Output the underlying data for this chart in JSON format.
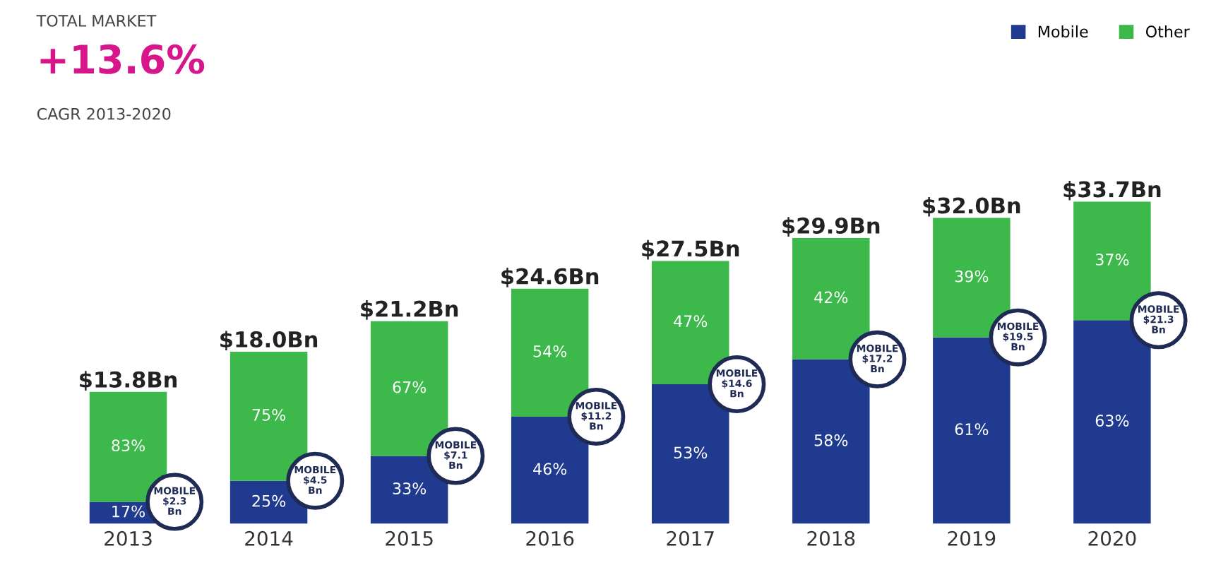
{
  "chart_data": {
    "type": "bar",
    "stacked": true,
    "title": "+13.6%",
    "subtitle": "CAGR 2013-2020",
    "categories": [
      "2013",
      "2014",
      "2015",
      "2016",
      "2017",
      "2018",
      "2019",
      "2020"
    ],
    "series": [
      {
        "name": "Mobile",
        "color": "#1f3a8f",
        "values": [
          2.3,
          4.5,
          7.1,
          11.2,
          14.6,
          17.2,
          19.5,
          21.3
        ],
        "value_labels": [
          "MOBILE\n$2.3\nBn",
          "MOBILE\n$4.5\nBn",
          "MOBILE\n$7.1\nBn",
          "MOBILE\n$11.2\nBn",
          "MOBILE\n$14.6\nBn",
          "MOBILE\n$17.2\nBn",
          "MOBILE\n$19.5\nBn",
          "MOBILE\n$21.3\nBn"
        ]
      },
      {
        "name": "Other",
        "color": "#3cb94a",
        "values": [
          11.5,
          13.5,
          14.1,
          13.4,
          12.9,
          12.7,
          12.5,
          12.4
        ]
      }
    ],
    "totals": [
      "$13.8Bn",
      "$18.0Bn",
      "$21.2Bn",
      "$24.6Bn",
      "$27.5Bn",
      "$29.9Bn",
      "$32.0Bn",
      "$33.7Bn"
    ],
    "annotations": [
      "TOTAL MARKET",
      "17%",
      "25%",
      "33%",
      "46%",
      "53%",
      "58%",
      "61%",
      "63%",
      "83%",
      "75%",
      "67%",
      "54%",
      "47%",
      "42%",
      "39%",
      "37%"
    ],
    "legend": "top right",
    "grid": false
  }
}
